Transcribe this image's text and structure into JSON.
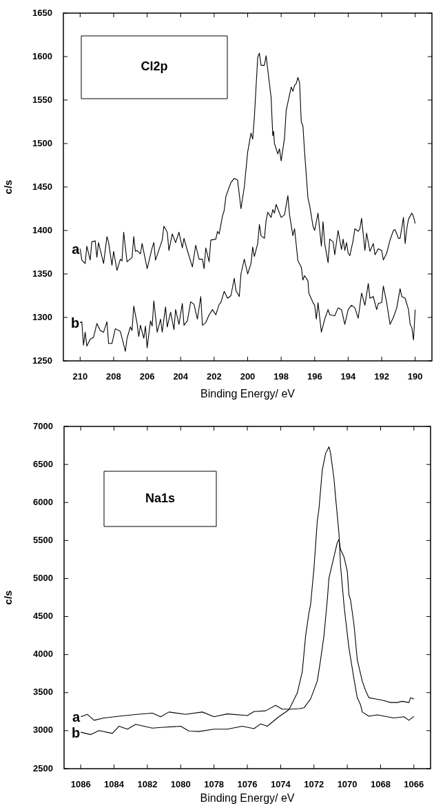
{
  "chart_data": [
    {
      "type": "line",
      "title": "Cl2p",
      "xlabel": "Binding Energy/ eV",
      "ylabel": "c/s",
      "xlim": [
        211,
        189
      ],
      "ylim": [
        1250,
        1650
      ],
      "xticks": [
        210,
        208,
        206,
        204,
        202,
        200,
        198,
        196,
        194,
        192,
        190
      ],
      "yticks": [
        1250,
        1300,
        1350,
        1400,
        1450,
        1500,
        1550,
        1600,
        1650
      ],
      "grid": false,
      "legend": false,
      "marker": "none",
      "line_style": "solid",
      "series": [
        {
          "name": "a",
          "color": "#000000",
          "x": [
            210.0,
            209.9,
            209.7,
            209.6,
            209.4,
            209.3,
            209.1,
            209.0,
            208.9,
            208.6,
            208.4,
            208.3,
            208.1,
            208.0,
            207.8,
            207.6,
            207.5,
            207.4,
            207.2,
            206.9,
            206.8,
            206.7,
            206.6,
            206.4,
            206.3,
            206.0,
            205.7,
            205.6,
            205.5,
            205.1,
            205.0,
            204.8,
            204.7,
            204.5,
            204.3,
            204.1,
            203.9,
            203.8,
            203.6,
            203.3,
            203.1,
            202.9,
            202.7,
            202.6,
            202.5,
            202.3,
            202.2,
            201.9,
            201.8,
            201.7,
            201.5,
            201.4,
            201.3,
            201.1,
            201.0,
            200.8,
            200.6,
            200.4,
            200.2,
            200.0,
            199.8,
            199.7,
            199.6,
            199.4,
            199.3,
            199.2,
            199.0,
            198.9,
            198.6,
            198.5,
            198.45,
            198.4,
            198.2,
            198.1,
            198.0,
            197.8,
            197.7,
            197.4,
            197.3,
            197.2,
            197.1,
            197.0,
            196.9,
            196.8,
            196.7,
            196.6,
            196.4,
            196.3,
            196.1,
            196.0,
            195.8,
            195.6,
            195.5,
            195.4,
            195.2,
            195.1,
            194.9,
            194.8,
            194.6,
            194.4,
            194.3,
            194.2,
            194.1,
            194.0,
            193.9,
            193.7,
            193.6,
            193.4,
            193.3,
            193.2,
            193.0,
            192.9,
            192.7,
            192.5,
            192.4,
            192.2,
            192.0,
            191.9,
            191.7,
            191.5,
            191.3,
            191.2,
            191.0,
            190.9,
            190.7,
            190.6,
            190.5,
            190.4,
            190.2,
            190.1,
            190.0
          ],
          "values": [
            1379,
            1366,
            1362,
            1382,
            1366,
            1387,
            1388,
            1369,
            1386,
            1362,
            1393,
            1386,
            1360,
            1376,
            1354,
            1367,
            1365,
            1398,
            1364,
            1369,
            1393,
            1376,
            1377,
            1373,
            1385,
            1356,
            1380,
            1386,
            1366,
            1389,
            1405,
            1398,
            1377,
            1396,
            1386,
            1398,
            1380,
            1391,
            1377,
            1358,
            1383,
            1367,
            1367,
            1356,
            1380,
            1364,
            1389,
            1390,
            1399,
            1396,
            1417,
            1423,
            1439,
            1450,
            1455,
            1460,
            1458,
            1425,
            1450,
            1490,
            1512,
            1505,
            1530,
            1599,
            1604,
            1590,
            1590,
            1601,
            1553,
            1509,
            1514,
            1500,
            1488,
            1494,
            1480,
            1506,
            1538,
            1565,
            1560,
            1567,
            1569,
            1576,
            1570,
            1525,
            1520,
            1490,
            1437,
            1429,
            1405,
            1400,
            1420,
            1382,
            1410,
            1385,
            1363,
            1390,
            1387,
            1372,
            1400,
            1378,
            1390,
            1377,
            1386,
            1374,
            1371,
            1389,
            1402,
            1399,
            1402,
            1414,
            1377,
            1397,
            1376,
            1385,
            1372,
            1379,
            1377,
            1366,
            1374,
            1389,
            1400,
            1401,
            1391,
            1391,
            1415,
            1385,
            1402,
            1413,
            1420,
            1416,
            1408
          ]
        },
        {
          "name": "b",
          "color": "#000000",
          "x": [
            210.0,
            209.9,
            209.8,
            209.7,
            209.6,
            209.4,
            209.2,
            209.0,
            208.8,
            208.6,
            208.4,
            208.3,
            208.1,
            207.9,
            207.6,
            207.3,
            207.2,
            207.0,
            206.9,
            206.8,
            206.6,
            206.5,
            206.4,
            206.2,
            206.1,
            206.0,
            205.8,
            205.7,
            205.6,
            205.4,
            205.2,
            205.1,
            204.9,
            204.8,
            204.6,
            204.4,
            204.3,
            204.1,
            203.9,
            203.8,
            203.6,
            203.4,
            203.2,
            203.0,
            202.8,
            202.7,
            202.5,
            202.3,
            202.1,
            201.9,
            201.7,
            201.6,
            201.4,
            201.2,
            201.0,
            200.8,
            200.7,
            200.5,
            200.4,
            200.2,
            200.0,
            199.8,
            199.7,
            199.6,
            199.4,
            199.3,
            199.2,
            199.0,
            198.9,
            198.8,
            198.6,
            198.5,
            198.4,
            198.3,
            198.2,
            198.0,
            197.8,
            197.6,
            197.5,
            197.3,
            197.2,
            197.0,
            196.8,
            196.7,
            196.6,
            196.4,
            196.35,
            196.1,
            196.0,
            195.9,
            195.8,
            195.6,
            195.4,
            195.2,
            195.1,
            194.8,
            194.6,
            194.4,
            194.2,
            194.0,
            193.8,
            193.6,
            193.4,
            193.2,
            193.0,
            192.8,
            192.7,
            192.5,
            192.3,
            192.2,
            192.0,
            191.9,
            191.7,
            191.5,
            191.3,
            191.1,
            190.9,
            190.8,
            190.6,
            190.4,
            190.3,
            190.2,
            190.1,
            190.0
          ],
          "values": [
            1294,
            1295,
            1268,
            1283,
            1267,
            1275,
            1277,
            1293,
            1285,
            1283,
            1295,
            1270,
            1270,
            1287,
            1284,
            1261,
            1276,
            1289,
            1285,
            1313,
            1293,
            1278,
            1291,
            1276,
            1290,
            1265,
            1296,
            1290,
            1319,
            1283,
            1298,
            1283,
            1312,
            1289,
            1306,
            1286,
            1309,
            1292,
            1316,
            1291,
            1296,
            1318,
            1315,
            1298,
            1324,
            1291,
            1294,
            1303,
            1309,
            1303,
            1315,
            1317,
            1330,
            1322,
            1325,
            1345,
            1331,
            1324,
            1350,
            1367,
            1350,
            1362,
            1381,
            1370,
            1385,
            1407,
            1394,
            1391,
            1411,
            1421,
            1415,
            1424,
            1420,
            1430,
            1425,
            1415,
            1418,
            1440,
            1418,
            1394,
            1402,
            1365,
            1358,
            1343,
            1348,
            1342,
            1328,
            1317,
            1314,
            1298,
            1317,
            1283,
            1298,
            1309,
            1303,
            1302,
            1311,
            1309,
            1292,
            1309,
            1314,
            1311,
            1299,
            1328,
            1314,
            1339,
            1322,
            1324,
            1309,
            1316,
            1317,
            1336,
            1317,
            1292,
            1300,
            1311,
            1333,
            1324,
            1322,
            1309,
            1292,
            1288,
            1274,
            1309
          ]
        }
      ]
    },
    {
      "type": "line",
      "title": "Na1s",
      "xlabel": "Binding Energy/ eV",
      "ylabel": "c/s",
      "xlim": [
        1087,
        1065
      ],
      "ylim": [
        2500,
        7000
      ],
      "xticks": [
        1086,
        1084,
        1082,
        1080,
        1078,
        1076,
        1074,
        1072,
        1070,
        1068,
        1066
      ],
      "yticks": [
        2500,
        3000,
        3500,
        4000,
        4500,
        5000,
        5500,
        6000,
        6500,
        7000
      ],
      "grid": false,
      "legend": false,
      "marker": "none",
      "line_style": "solid",
      "series": [
        {
          "name": "a",
          "color": "#000000",
          "x": [
            1086.0,
            1085.6,
            1085.2,
            1084.6,
            1083.7,
            1082.6,
            1081.7,
            1081.2,
            1080.7,
            1079.7,
            1078.7,
            1078.0,
            1077.2,
            1076.0,
            1075.6,
            1074.9,
            1074.3,
            1073.9,
            1073.4,
            1072.9,
            1072.6,
            1072.2,
            1071.8,
            1071.6,
            1071.4,
            1071.2,
            1071.1,
            1070.9,
            1070.6,
            1070.5,
            1070.4,
            1070.2,
            1070.0,
            1069.9,
            1069.8,
            1069.6,
            1069.4,
            1069.1,
            1068.9,
            1068.7,
            1068.3,
            1067.9,
            1067.4,
            1067.0,
            1066.7,
            1066.3,
            1066.2,
            1066.0
          ],
          "values": [
            3183,
            3214,
            3136,
            3167,
            3189,
            3214,
            3230,
            3183,
            3245,
            3214,
            3245,
            3183,
            3220,
            3198,
            3251,
            3261,
            3333,
            3283,
            3283,
            3290,
            3300,
            3417,
            3651,
            3933,
            4245,
            4714,
            5005,
            5192,
            5473,
            5511,
            5380,
            5286,
            5098,
            4786,
            4714,
            4401,
            3933,
            3651,
            3526,
            3433,
            3417,
            3401,
            3370,
            3370,
            3386,
            3370,
            3433,
            3417
          ]
        },
        {
          "name": "b",
          "color": "#000000",
          "x": [
            1086.0,
            1085.4,
            1084.9,
            1084.1,
            1083.7,
            1083.2,
            1082.7,
            1081.7,
            1081.2,
            1080.0,
            1079.5,
            1078.9,
            1078.0,
            1077.2,
            1076.3,
            1075.6,
            1075.2,
            1074.8,
            1074.2,
            1074.0,
            1073.5,
            1073.0,
            1072.7,
            1072.5,
            1072.3,
            1072.2,
            1072.0,
            1071.8,
            1071.7,
            1071.5,
            1071.3,
            1071.1,
            1071.0,
            1070.8,
            1070.7,
            1070.5,
            1070.4,
            1070.2,
            1070.1,
            1069.9,
            1069.6,
            1069.4,
            1069.2,
            1069.1,
            1068.7,
            1068.2,
            1067.6,
            1067.2,
            1066.6,
            1066.3,
            1066.0
          ],
          "values": [
            2980,
            2948,
            3001,
            2964,
            3058,
            3020,
            3083,
            3033,
            3042,
            3058,
            2995,
            2989,
            3020,
            3020,
            3058,
            3026,
            3089,
            3058,
            3167,
            3198,
            3276,
            3495,
            3776,
            4245,
            4550,
            4661,
            5130,
            5755,
            5911,
            6427,
            6645,
            6733,
            6645,
            6317,
            6067,
            5598,
            5161,
            4661,
            4464,
            4089,
            3683,
            3433,
            3339,
            3245,
            3189,
            3208,
            3183,
            3167,
            3183,
            3136,
            3189
          ]
        }
      ]
    }
  ]
}
